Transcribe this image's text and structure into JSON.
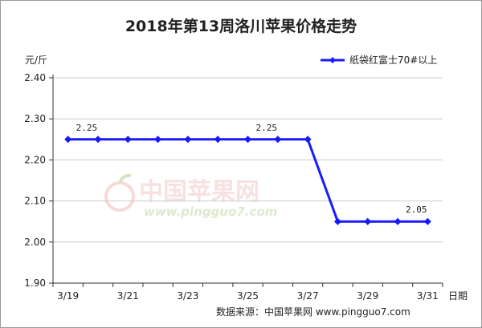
{
  "chart_data": {
    "type": "line",
    "title": "2018年第13周洛川苹果价格走势",
    "ylabel": "元/斤",
    "xlabel": "日期",
    "ylim": [
      1.9,
      2.4
    ],
    "yticks": [
      "2.40",
      "2.30",
      "2.20",
      "2.10",
      "2.00",
      "1.90"
    ],
    "xtick_labels": [
      "3/19",
      "3/21",
      "3/23",
      "3/25",
      "3/27",
      "3/29",
      "3/31"
    ],
    "x": [
      "3/19",
      "3/20",
      "3/21",
      "3/22",
      "3/23",
      "3/24",
      "3/25",
      "3/26",
      "3/27",
      "3/28",
      "3/29",
      "3/30",
      "3/31"
    ],
    "series": [
      {
        "name": "纸袋红富士70#以上",
        "values": [
          2.25,
          2.25,
          2.25,
          2.25,
          2.25,
          2.25,
          2.25,
          2.25,
          2.25,
          2.05,
          2.05,
          2.05,
          2.05
        ],
        "color": "#1a1aff"
      }
    ],
    "data_labels": [
      {
        "x": "3/19",
        "text": "2.25"
      },
      {
        "x": "3/25",
        "text": "2.25"
      },
      {
        "x": "3/30",
        "text": "2.05"
      }
    ],
    "legend_position": "top-right",
    "grid": true,
    "source": "数据来源：中国苹果网  www.pingguo7.com",
    "watermark": {
      "name": "中国苹果网",
      "url": "www.pingguo7.com"
    }
  }
}
